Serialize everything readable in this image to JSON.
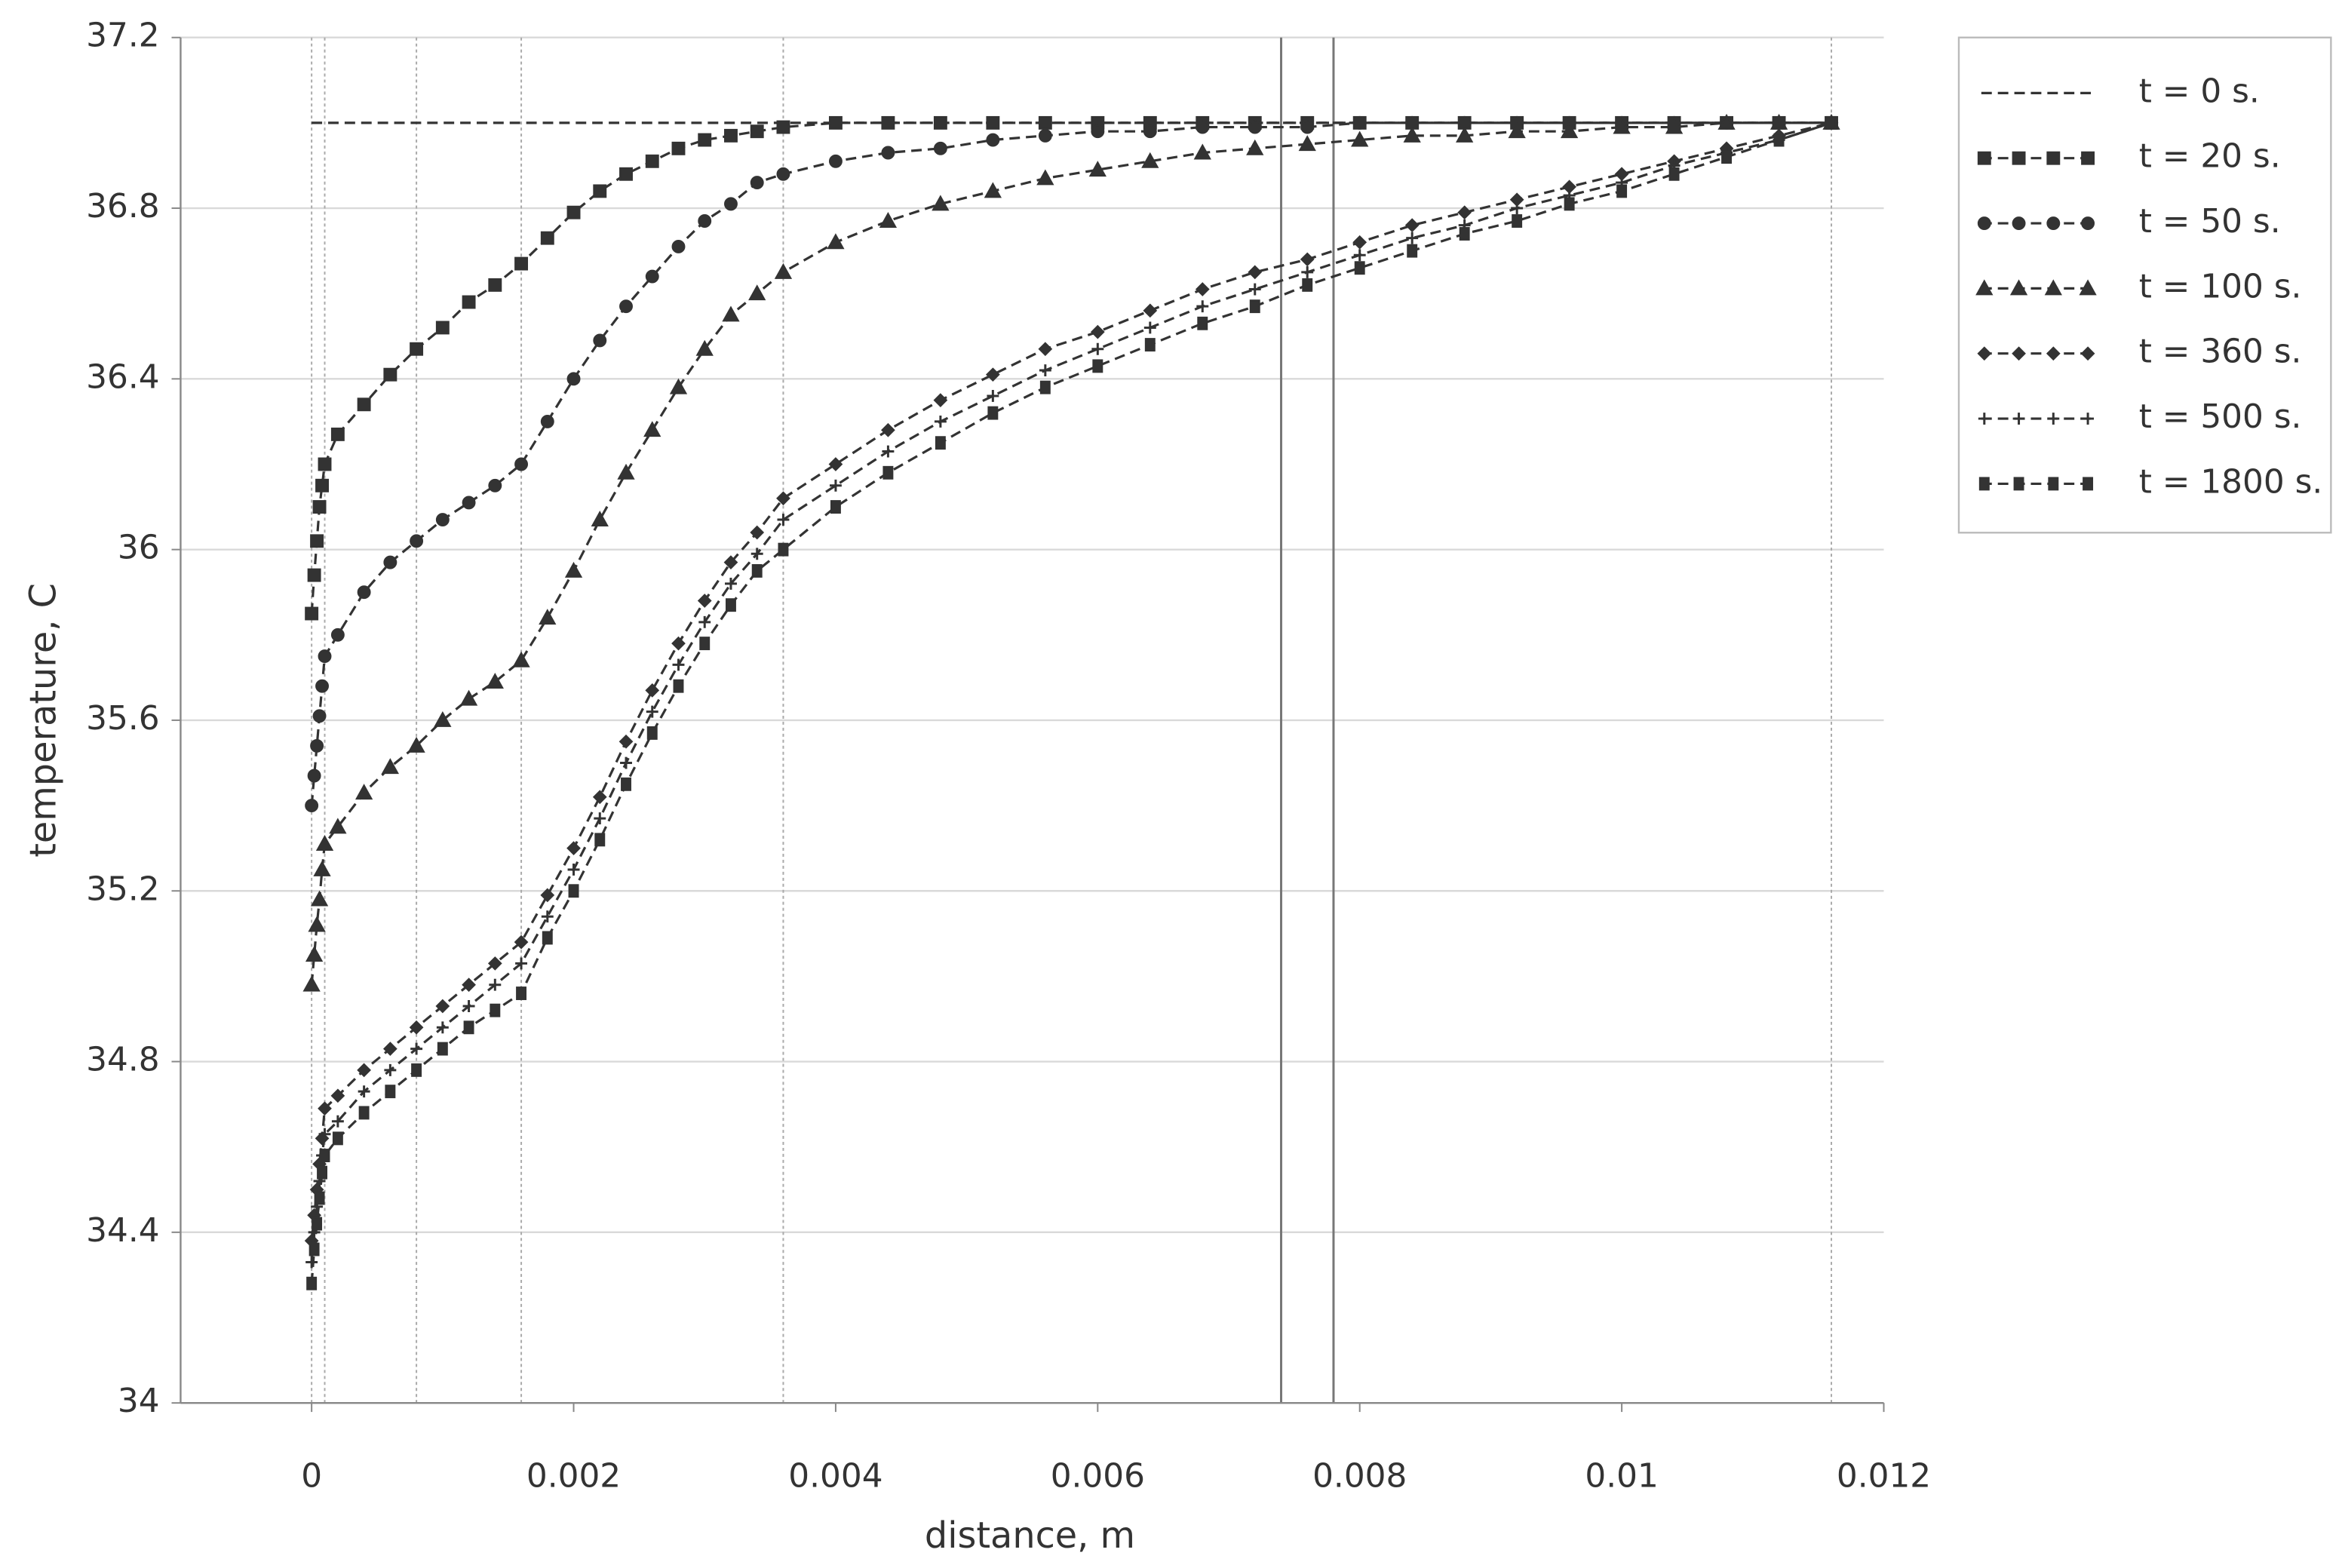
{
  "chart_data": {
    "type": "line",
    "x_label": "distance, m",
    "y_label": "temperature, C",
    "xlim": [
      -0.001,
      0.012
    ],
    "ylim": [
      34,
      37.2
    ],
    "xticks": [
      0,
      0.002,
      0.004,
      0.006,
      0.008,
      0.01,
      0.012
    ],
    "yticks": [
      34,
      34.4,
      34.8,
      35.2,
      35.6,
      36,
      36.4,
      36.8,
      37.2
    ],
    "grid": true,
    "dotted_vlines": [
      0,
      0.0001,
      0.0008,
      0.0016,
      0.0036,
      0.0116
    ],
    "solid_vlines": [
      0.0074,
      0.0078
    ],
    "legend": "outside-right-top",
    "x": [
      0,
      2e-05,
      4e-05,
      6e-05,
      8e-05,
      0.0001,
      0.0002,
      0.0004,
      0.0006,
      0.0008,
      0.001,
      0.0012,
      0.0014,
      0.0016,
      0.0018,
      0.002,
      0.0022,
      0.0024,
      0.0026,
      0.0028,
      0.003,
      0.0032,
      0.0034,
      0.0036,
      0.004,
      0.0044,
      0.0048,
      0.0052,
      0.0056,
      0.006,
      0.0064,
      0.0068,
      0.0072,
      0.0076,
      0.008,
      0.0084,
      0.0088,
      0.0092,
      0.0096,
      0.01,
      0.0104,
      0.0108,
      0.0112,
      0.0116
    ],
    "series": [
      {
        "name": "t = 0 s.",
        "color": "#333333",
        "marker": "none",
        "values": [
          37,
          37,
          37,
          37,
          37,
          37,
          37,
          37,
          37,
          37,
          37,
          37,
          37,
          37,
          37,
          37,
          37,
          37,
          37,
          37,
          37,
          37,
          37,
          37,
          37,
          37,
          37,
          37,
          37,
          37,
          37,
          37,
          37,
          37,
          37,
          37,
          37,
          37,
          37,
          37,
          37,
          37,
          37,
          37
        ]
      },
      {
        "name": "t = 20 s.",
        "color": "#333333",
        "marker": "square",
        "values": [
          35.85,
          35.94,
          36.02,
          36.1,
          36.15,
          36.2,
          36.27,
          36.34,
          36.41,
          36.47,
          36.52,
          36.58,
          36.62,
          36.67,
          36.73,
          36.79,
          36.84,
          36.88,
          36.91,
          36.94,
          36.96,
          36.97,
          36.98,
          36.99,
          37,
          37,
          37,
          37,
          37,
          37,
          37,
          37,
          37,
          37,
          37,
          37,
          37,
          37,
          37,
          37,
          37,
          37,
          37,
          37
        ]
      },
      {
        "name": "t = 50 s.",
        "color": "#333333",
        "marker": "circle",
        "values": [
          35.4,
          35.47,
          35.54,
          35.61,
          35.68,
          35.75,
          35.8,
          35.9,
          35.97,
          36.02,
          36.07,
          36.11,
          36.15,
          36.2,
          36.3,
          36.4,
          36.49,
          36.57,
          36.64,
          36.71,
          36.77,
          36.81,
          36.86,
          36.88,
          36.91,
          36.93,
          36.94,
          36.96,
          36.97,
          36.98,
          36.98,
          36.99,
          36.99,
          36.99,
          37,
          37,
          37,
          37,
          37,
          37,
          37,
          37,
          37,
          37
        ]
      },
      {
        "name": "t = 100 s.",
        "color": "#333333",
        "marker": "triangle",
        "values": [
          34.98,
          35.05,
          35.12,
          35.18,
          35.25,
          35.31,
          35.35,
          35.43,
          35.49,
          35.54,
          35.6,
          35.65,
          35.69,
          35.74,
          35.84,
          35.95,
          36.07,
          36.18,
          36.28,
          36.38,
          36.47,
          36.55,
          36.6,
          36.65,
          36.72,
          36.77,
          36.81,
          36.84,
          36.87,
          36.89,
          36.91,
          36.93,
          36.94,
          36.95,
          36.96,
          36.97,
          36.97,
          36.98,
          36.98,
          36.99,
          36.99,
          37,
          37,
          37
        ]
      },
      {
        "name": "t = 360 s.",
        "color": "#333333",
        "marker": "diamond",
        "values": [
          34.38,
          34.44,
          34.5,
          34.56,
          34.62,
          34.69,
          34.72,
          34.78,
          34.83,
          34.88,
          34.93,
          34.98,
          35.03,
          35.08,
          35.19,
          35.3,
          35.42,
          35.55,
          35.67,
          35.78,
          35.88,
          35.97,
          36.04,
          36.12,
          36.2,
          36.28,
          36.35,
          36.41,
          36.47,
          36.51,
          36.56,
          36.61,
          36.65,
          36.68,
          36.72,
          36.76,
          36.79,
          36.82,
          36.85,
          36.88,
          36.91,
          36.94,
          36.97,
          37
        ]
      },
      {
        "name": "t = 500 s.",
        "color": "#333333",
        "marker": "plus",
        "values": [
          34.33,
          34.4,
          34.46,
          34.52,
          34.58,
          34.63,
          34.66,
          34.73,
          34.78,
          34.83,
          34.88,
          34.93,
          34.98,
          35.03,
          35.14,
          35.25,
          35.37,
          35.5,
          35.62,
          35.73,
          35.83,
          35.92,
          35.99,
          36.07,
          36.15,
          36.23,
          36.3,
          36.36,
          36.42,
          36.47,
          36.52,
          36.57,
          36.61,
          36.65,
          36.69,
          36.73,
          36.76,
          36.8,
          36.83,
          36.86,
          36.9,
          36.93,
          36.96,
          37
        ]
      },
      {
        "name": "t = 1800 s.",
        "color": "#333333",
        "marker": "bar",
        "values": [
          34.28,
          34.36,
          34.42,
          34.48,
          34.54,
          34.58,
          34.62,
          34.68,
          34.73,
          34.78,
          34.83,
          34.88,
          34.92,
          34.96,
          35.09,
          35.2,
          35.32,
          35.45,
          35.57,
          35.68,
          35.78,
          35.87,
          35.95,
          36,
          36.1,
          36.18,
          36.25,
          36.32,
          36.38,
          36.43,
          36.48,
          36.53,
          36.57,
          36.62,
          36.66,
          36.7,
          36.74,
          36.77,
          36.81,
          36.84,
          36.88,
          36.92,
          36.96,
          37
        ]
      }
    ]
  }
}
